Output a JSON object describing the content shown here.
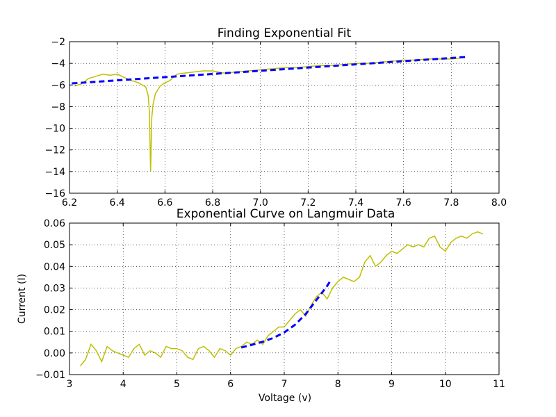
{
  "colors": {
    "data": "#bfbf00",
    "fit": "#0000ff"
  },
  "chart_data": [
    {
      "type": "line",
      "title": "Finding Exponential Fit",
      "xlabel": "",
      "ylabel": "",
      "xlim": [
        6.2,
        8.0
      ],
      "ylim": [
        -16,
        -2
      ],
      "xticks": [
        6.2,
        6.4,
        6.6,
        6.8,
        7.0,
        7.2,
        7.4,
        7.6,
        7.8,
        8.0
      ],
      "yticks": [
        -16,
        -14,
        -12,
        -10,
        -8,
        -6,
        -4,
        -2
      ],
      "xtick_labels": [
        "6.2",
        "6.4",
        "6.6",
        "6.8",
        "7.0",
        "7.2",
        "7.4",
        "7.6",
        "7.8",
        "8.0"
      ],
      "ytick_labels": [
        "−16",
        "−14",
        "−12",
        "−10",
        "−8",
        "−6",
        "−4",
        "−2"
      ],
      "grid": true,
      "series": [
        {
          "style": "solid",
          "color": "#bfbf00",
          "x": [
            6.22,
            6.25,
            6.28,
            6.31,
            6.34,
            6.37,
            6.4,
            6.43,
            6.46,
            6.49,
            6.52,
            6.53,
            6.535,
            6.54,
            6.545,
            6.55,
            6.56,
            6.58,
            6.6,
            6.62,
            6.65,
            6.68,
            6.72,
            6.76,
            6.8,
            6.85,
            6.9,
            6.95,
            7.0,
            7.05,
            7.1,
            7.15,
            7.2,
            7.25,
            7.3,
            7.35,
            7.4,
            7.45,
            7.5,
            7.55,
            7.6,
            7.65,
            7.7,
            7.75,
            7.8,
            7.84
          ],
          "y": [
            -6.1,
            -5.9,
            -5.4,
            -5.2,
            -5.0,
            -5.1,
            -5.0,
            -5.3,
            -5.6,
            -5.8,
            -6.2,
            -7.0,
            -8.5,
            -14.0,
            -9.0,
            -7.8,
            -6.8,
            -6.1,
            -5.8,
            -5.6,
            -5.0,
            -4.9,
            -4.8,
            -4.7,
            -4.7,
            -4.9,
            -4.8,
            -4.7,
            -4.6,
            -4.5,
            -4.4,
            -4.4,
            -4.3,
            -4.2,
            -4.2,
            -4.1,
            -4.0,
            -4.0,
            -3.9,
            -3.8,
            -3.7,
            -3.7,
            -3.6,
            -3.6,
            -3.6,
            -3.5
          ]
        },
        {
          "style": "dashed",
          "color": "#0000ff",
          "x": [
            6.21,
            7.87
          ],
          "y": [
            -5.85,
            -3.4
          ]
        }
      ]
    },
    {
      "type": "line",
      "title": "Exponential Curve on Langmuir Data",
      "xlabel": "Voltage (v)",
      "ylabel": "Current (I)",
      "xlim": [
        3,
        11
      ],
      "ylim": [
        -0.01,
        0.06
      ],
      "xticks": [
        3,
        4,
        5,
        6,
        7,
        8,
        9,
        10,
        11
      ],
      "yticks": [
        -0.01,
        0.0,
        0.01,
        0.02,
        0.03,
        0.04,
        0.05,
        0.06
      ],
      "xtick_labels": [
        "3",
        "4",
        "5",
        "6",
        "7",
        "8",
        "9",
        "10",
        "11"
      ],
      "ytick_labels": [
        "−0.01",
        "0.00",
        "0.01",
        "0.02",
        "0.03",
        "0.04",
        "0.05",
        "0.06"
      ],
      "grid": true,
      "series": [
        {
          "style": "solid",
          "color": "#bfbf00",
          "x": [
            3.2,
            3.3,
            3.4,
            3.5,
            3.6,
            3.7,
            3.8,
            3.9,
            4.0,
            4.1,
            4.2,
            4.3,
            4.4,
            4.5,
            4.6,
            4.7,
            4.8,
            4.9,
            5.0,
            5.1,
            5.2,
            5.3,
            5.4,
            5.5,
            5.6,
            5.7,
            5.8,
            5.9,
            6.0,
            6.1,
            6.2,
            6.3,
            6.4,
            6.5,
            6.6,
            6.7,
            6.8,
            6.9,
            7.0,
            7.1,
            7.2,
            7.3,
            7.4,
            7.5,
            7.6,
            7.7,
            7.8,
            7.9,
            8.0,
            8.1,
            8.2,
            8.3,
            8.4,
            8.5,
            8.6,
            8.7,
            8.8,
            8.9,
            9.0,
            9.1,
            9.2,
            9.3,
            9.4,
            9.5,
            9.6,
            9.7,
            9.8,
            9.9,
            10.0,
            10.1,
            10.2,
            10.3,
            10.4,
            10.5,
            10.6,
            10.7
          ],
          "y": [
            -0.006,
            -0.003,
            0.004,
            0.001,
            -0.004,
            0.003,
            0.001,
            0.0,
            -0.001,
            -0.002,
            0.002,
            0.004,
            -0.001,
            0.001,
            0.0,
            -0.002,
            0.003,
            0.002,
            0.002,
            0.001,
            -0.002,
            -0.003,
            0.002,
            0.003,
            0.001,
            -0.002,
            0.002,
            0.001,
            -0.001,
            0.002,
            0.003,
            0.005,
            0.004,
            0.006,
            0.004,
            0.008,
            0.01,
            0.012,
            0.012,
            0.015,
            0.018,
            0.02,
            0.017,
            0.022,
            0.026,
            0.028,
            0.025,
            0.03,
            0.033,
            0.035,
            0.034,
            0.033,
            0.035,
            0.042,
            0.045,
            0.04,
            0.042,
            0.045,
            0.047,
            0.046,
            0.048,
            0.05,
            0.049,
            0.05,
            0.049,
            0.053,
            0.054,
            0.049,
            0.047,
            0.051,
            0.053,
            0.054,
            0.053,
            0.055,
            0.056,
            0.055
          ]
        },
        {
          "style": "dashed",
          "color": "#0000ff",
          "x": [
            6.2,
            6.4,
            6.6,
            6.8,
            7.0,
            7.2,
            7.4,
            7.6,
            7.8,
            7.85
          ],
          "y": [
            0.0025,
            0.0038,
            0.0052,
            0.007,
            0.0095,
            0.013,
            0.018,
            0.0245,
            0.031,
            0.033
          ]
        }
      ]
    }
  ]
}
